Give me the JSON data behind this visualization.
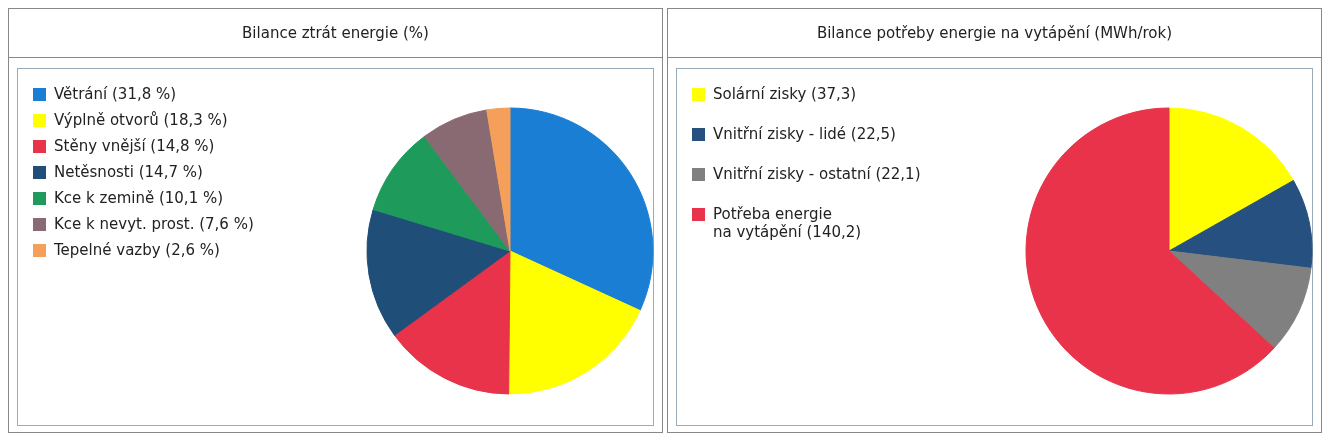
{
  "chart_data": [
    {
      "type": "pie",
      "title": "Bilance ztrát energie (%)",
      "legend": "left",
      "categories": [
        "Větrání (31,8 %)",
        "Výplně otvorů (18,3 %)",
        "Stěny vnější (14,8 %)",
        "Netěsnosti (14,7 %)",
        "Kce k zemině (10,1 %)",
        "Kce k nevyt. prost. (7,6 %)",
        "Tepelné vazby (2,6 %)"
      ],
      "values": [
        31.8,
        18.3,
        14.8,
        14.7,
        10.1,
        7.6,
        2.6
      ],
      "colors": [
        "#1a7fd4",
        "#ffff00",
        "#e8334a",
        "#1f4e79",
        "#1e9a5a",
        "#8a6a72",
        "#f5a05a"
      ]
    },
    {
      "type": "pie",
      "title": "Bilance potřeby energie na vytápění (MWh/rok)",
      "legend": "left",
      "categories": [
        "Solární zisky (37,3)",
        "Vnitřní zisky - lidé (22,5)",
        "Vnitřní zisky - ostatní (22,1)",
        "Potřeba energie\nna vytápění (140,2)"
      ],
      "values": [
        37.3,
        22.5,
        22.1,
        140.2
      ],
      "colors": [
        "#ffff00",
        "#25507f",
        "#808080",
        "#e8334a"
      ]
    }
  ]
}
